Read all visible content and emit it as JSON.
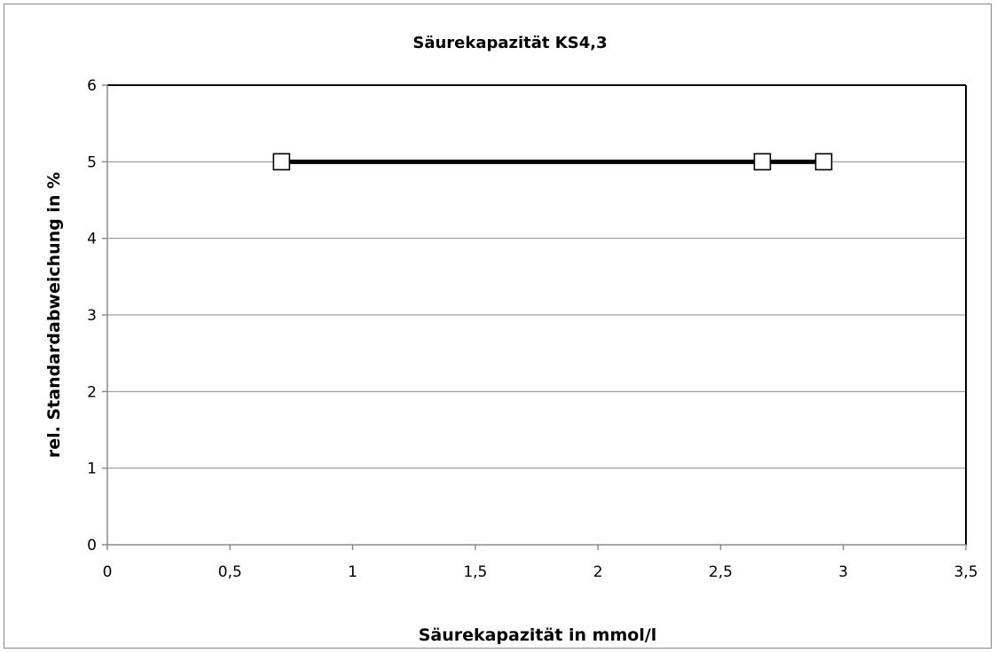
{
  "chart_data": {
    "type": "scatter",
    "title": "Säurekapazität KS4,3",
    "xlabel": "Säurekapazität in mmol/l",
    "ylabel": "rel. Standardabweichung in %",
    "xlim": [
      0,
      3.5
    ],
    "ylim": [
      0,
      6
    ],
    "x_ticks": [
      "0",
      "0,5",
      "1",
      "1,5",
      "2",
      "2,5",
      "3",
      "3,5"
    ],
    "y_ticks": [
      "0",
      "1",
      "2",
      "3",
      "4",
      "5",
      "6"
    ],
    "grid": "horizontal",
    "legend": "none",
    "series": [
      {
        "x": [
          0.71,
          2.67,
          2.92
        ],
        "y": [
          5,
          5,
          5
        ],
        "line": true,
        "marker": "hollow-square",
        "color": "#000000"
      }
    ]
  }
}
